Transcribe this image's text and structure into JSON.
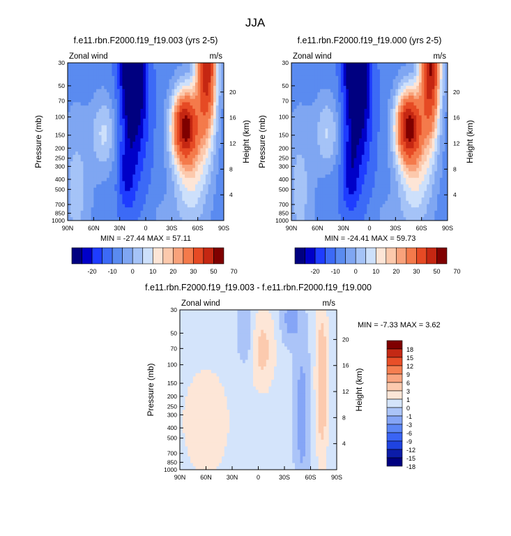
{
  "figure_title": "JJA",
  "colors": {
    "main": [
      "#000080",
      "#0000c8",
      "#1e3cff",
      "#3c6af6",
      "#5a8bf0",
      "#7fa6f2",
      "#a5c3f7",
      "#cde0fb",
      "#fde5d6",
      "#fcc9ac",
      "#f9a27b",
      "#f47a4b",
      "#e64a24",
      "#c52712",
      "#7f0000"
    ],
    "diff": [
      "#000080",
      "#0c1ca8",
      "#1f43e0",
      "#3a64f4",
      "#5c86f5",
      "#85a5f6",
      "#abc4f8",
      "#d4e4fb",
      "#fde6d7",
      "#fccaae",
      "#f9a580",
      "#f57f51",
      "#e84f28",
      "#c42914",
      "#7f0000"
    ]
  },
  "chart_data": [
    {
      "type": "heatmap",
      "title": "f.e11.rbn.F2000.f19_f19.003 (yrs 2-5)",
      "left_label": "Zonal wind",
      "right_label": "m/s",
      "ylabel": "Pressure (mb)",
      "ylabel_right": "Height (km)",
      "x_ticks": [
        "90N",
        "60N",
        "30N",
        "0",
        "30S",
        "60S",
        "90S"
      ],
      "y_ticks": [
        "30",
        "50",
        "70",
        "100",
        "150",
        "200",
        "250",
        "300",
        "400",
        "500",
        "700",
        "850",
        "1000"
      ],
      "height_ticks": [
        "20",
        "16",
        "12",
        "8",
        "4"
      ],
      "stats": "MIN = -27.44  MAX = 57.11",
      "colorbar_labels": [
        "-20",
        "-10",
        "0",
        "10",
        "20",
        "30",
        "50",
        "70"
      ],
      "contour_levels": [
        -25,
        -20,
        -15,
        -10,
        -5,
        0,
        5,
        10,
        15,
        20,
        25,
        30,
        40,
        50,
        60,
        70
      ]
    },
    {
      "type": "heatmap",
      "title": "f.e11.rbn.F2000.f19_f19.000 (yrs 2-5)",
      "left_label": "Zonal wind",
      "right_label": "m/s",
      "ylabel": "Pressure (mb)",
      "ylabel_right": "Height (km)",
      "x_ticks": [
        "90N",
        "60N",
        "30N",
        "0",
        "30S",
        "60S",
        "90S"
      ],
      "y_ticks": [
        "30",
        "50",
        "70",
        "100",
        "150",
        "200",
        "250",
        "300",
        "400",
        "500",
        "700",
        "850",
        "1000"
      ],
      "height_ticks": [
        "20",
        "16",
        "12",
        "8",
        "4"
      ],
      "stats": "MIN = -24.41  MAX =  59.73",
      "colorbar_labels": [
        "-20",
        "-10",
        "0",
        "10",
        "20",
        "30",
        "50",
        "70"
      ],
      "contour_levels": [
        -25,
        -20,
        -15,
        -10,
        -5,
        0,
        5,
        10,
        15,
        20,
        25,
        30,
        40,
        50,
        60,
        70
      ]
    },
    {
      "type": "heatmap",
      "title": "f.e11.rbn.F2000.f19_f19.003 - f.e11.rbn.F2000.f19_f19.000",
      "left_label": "Zonal wind",
      "right_label": "m/s",
      "ylabel": "Pressure (mb)",
      "ylabel_right": "Height (km)",
      "x_ticks": [
        "90N",
        "60N",
        "30N",
        "0",
        "30S",
        "60S",
        "90S"
      ],
      "y_ticks": [
        "30",
        "50",
        "70",
        "100",
        "150",
        "200",
        "250",
        "300",
        "400",
        "500",
        "700",
        "850",
        "1000"
      ],
      "height_ticks": [
        "20",
        "16",
        "12",
        "8",
        "4"
      ],
      "stats": "MIN = -7.33  MAX =  3.62",
      "colorbar_labels": [
        "18",
        "15",
        "12",
        "9",
        "6",
        "3",
        "1",
        "0",
        "-1",
        "-3",
        "-6",
        "-9",
        "-12",
        "-15",
        "-18"
      ],
      "contour_levels": [
        -21,
        -18,
        -15,
        -12,
        -9,
        -6,
        -3,
        -1,
        0,
        1,
        3,
        6,
        9,
        12,
        15,
        18
      ]
    }
  ]
}
